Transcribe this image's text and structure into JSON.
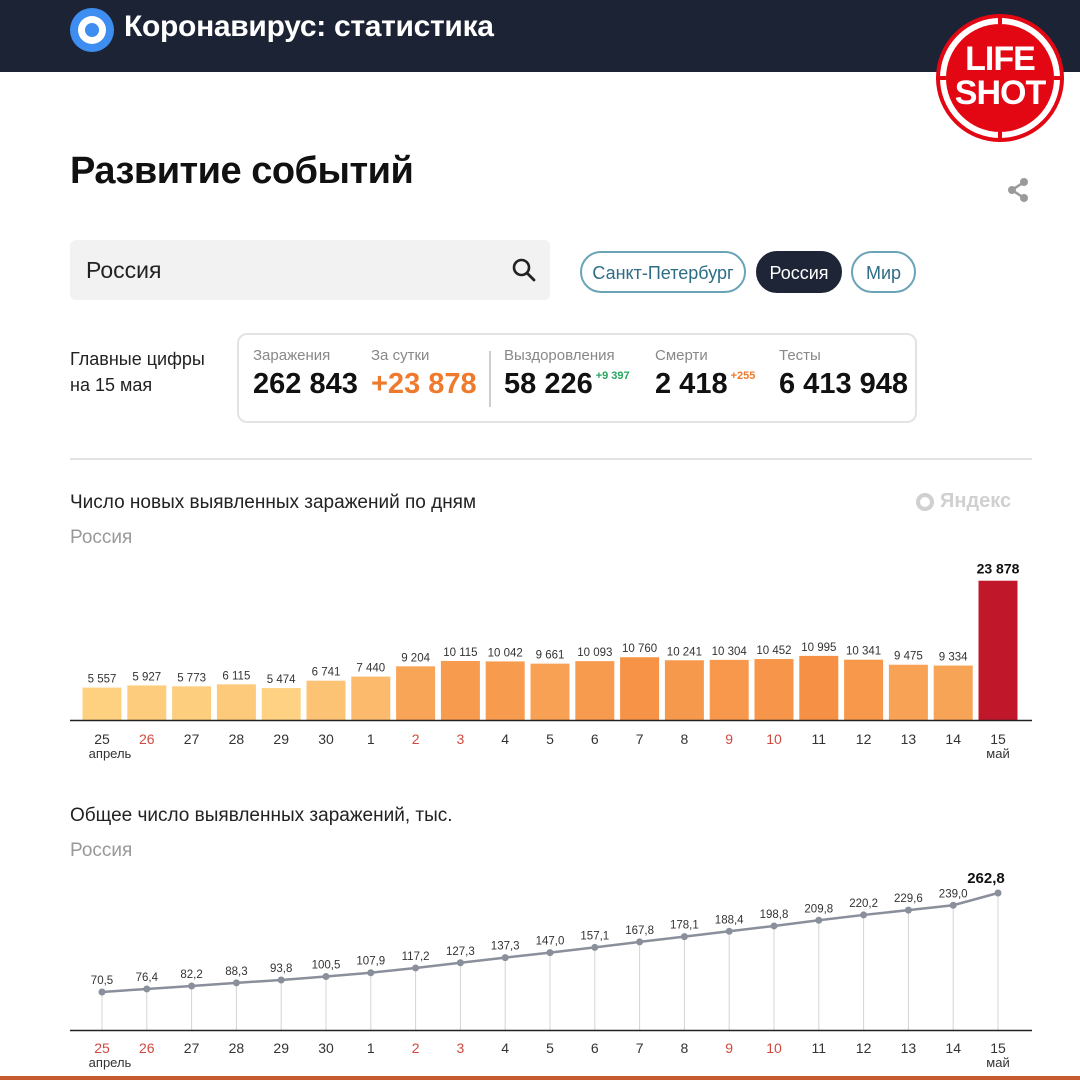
{
  "app": {
    "title": "Коронавирус: статистика",
    "watermark": "LIFE SHOT",
    "watermark_lines": [
      "LIFE",
      "SHOT"
    ]
  },
  "page": {
    "title": "Развитие событий"
  },
  "search": {
    "value": "Россия"
  },
  "chips": [
    {
      "label": "Санкт-Петербург",
      "active": false
    },
    {
      "label": "Россия",
      "active": true
    },
    {
      "label": "Мир",
      "active": false
    }
  ],
  "main_figures": {
    "label_line1": "Главные цифры",
    "label_line2": "на 15 мая",
    "stats": [
      {
        "label": "Заражения",
        "value": "262 843",
        "delta": ""
      },
      {
        "label": "За сутки",
        "value": "+23 878",
        "delta": ""
      },
      {
        "label": "Выздоровления",
        "value": "58 226",
        "delta": "+9 397"
      },
      {
        "label": "Смерти",
        "value": "2 418",
        "delta": "+255"
      },
      {
        "label": "Тесты",
        "value": "6 413 948",
        "delta": ""
      }
    ]
  },
  "yandex_mark": "Яндекс",
  "colors": {
    "header_bg": "#1c2335",
    "accent_orange": "#ef7a2d",
    "highlight_bar": "#c0182a",
    "weekend_text": "#d0493f"
  },
  "chart_data": [
    {
      "type": "bar",
      "title": "Число новых выявленных заражений по дням",
      "subtitle": "Россия",
      "categories": [
        "25",
        "26",
        "27",
        "28",
        "29",
        "30",
        "1",
        "2",
        "3",
        "4",
        "5",
        "6",
        "7",
        "8",
        "9",
        "10",
        "11",
        "12",
        "13",
        "14",
        "15"
      ],
      "month_labels": [
        {
          "index": 0,
          "text": "апрель"
        },
        {
          "index": 20,
          "text": "май"
        }
      ],
      "weekend_indices": [
        1,
        7,
        8,
        14,
        15
      ],
      "values": [
        5557,
        5927,
        5773,
        6115,
        5474,
        6741,
        7440,
        9204,
        10115,
        10042,
        9661,
        10093,
        10760,
        10241,
        10304,
        10452,
        10995,
        10341,
        9475,
        9334,
        23878
      ],
      "value_labels": [
        "5 557",
        "5 927",
        "5 773",
        "6 115",
        "5 474",
        "6 741",
        "7 440",
        "9 204",
        "10 115",
        "10 042",
        "9 661",
        "10 093",
        "10 760",
        "10 241",
        "10 304",
        "10 452",
        "10 995",
        "10 341",
        "9 475",
        "9 334",
        "23 878"
      ],
      "highlight_index": 20,
      "ylim": [
        0,
        25000
      ],
      "grid": false
    },
    {
      "type": "line",
      "title": "Общее число выявленных заражений, тыс.",
      "subtitle": "Россия",
      "categories": [
        "25",
        "26",
        "27",
        "28",
        "29",
        "30",
        "1",
        "2",
        "3",
        "4",
        "5",
        "6",
        "7",
        "8",
        "9",
        "10",
        "11",
        "12",
        "13",
        "14",
        "15"
      ],
      "month_labels": [
        {
          "index": 0,
          "text": "апрель"
        },
        {
          "index": 20,
          "text": "май"
        }
      ],
      "weekend_indices": [
        0,
        1,
        7,
        8,
        14,
        15
      ],
      "values": [
        70.5,
        76.4,
        82.2,
        88.3,
        93.8,
        100.5,
        107.9,
        117.2,
        127.3,
        137.3,
        147.0,
        157.1,
        167.8,
        178.1,
        188.4,
        198.8,
        209.8,
        220.2,
        229.6,
        239.0,
        262.8
      ],
      "value_labels": [
        "70,5",
        "76,4",
        "82,2",
        "88,3",
        "93,8",
        "100,5",
        "107,9",
        "117,2",
        "127,3",
        "137,3",
        "147,0",
        "157,1",
        "167,8",
        "178,1",
        "188,4",
        "198,8",
        "209,8",
        "220,2",
        "229,6",
        "239,0",
        "262,8"
      ],
      "highlight_index": 20,
      "ylim": [
        0,
        300
      ],
      "grid": false
    }
  ]
}
